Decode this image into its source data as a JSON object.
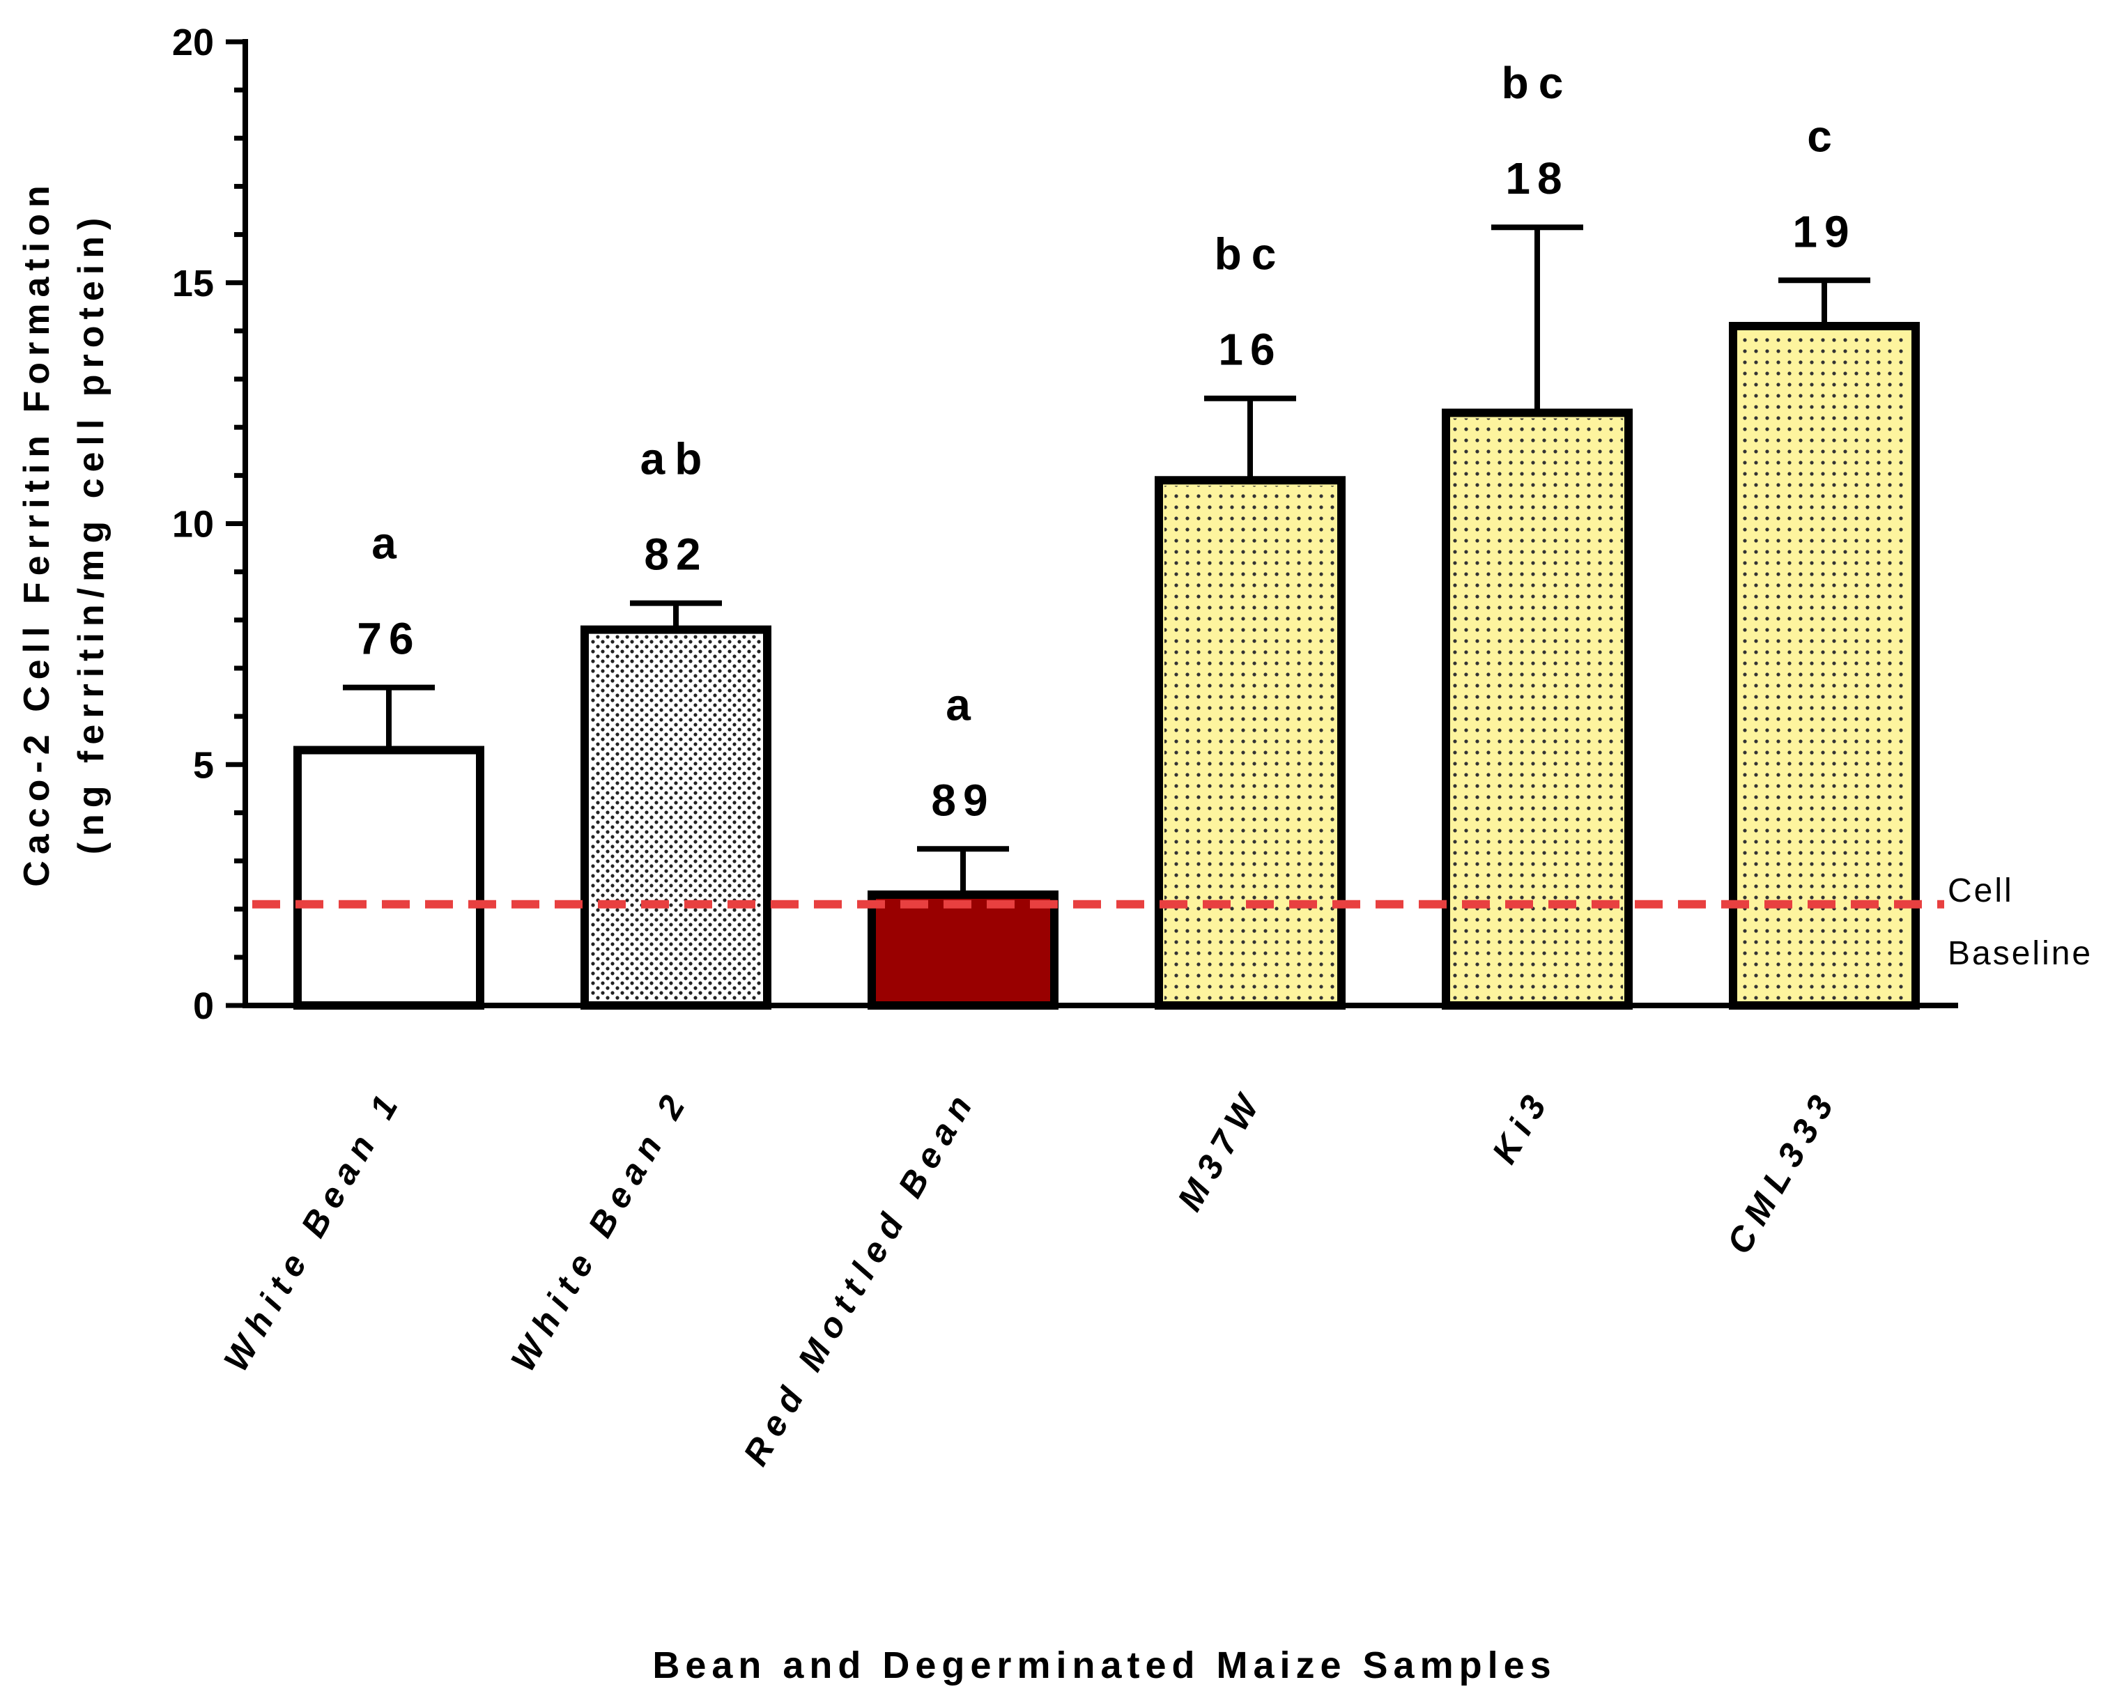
{
  "chart_data": {
    "type": "bar",
    "title": "",
    "xlabel": "Bean and Degerminated Maize Samples",
    "ylabel_lines": [
      "Caco-2 Cell Ferritin  Formation",
      "(ng ferritin/mg cell protein)"
    ],
    "ylim": [
      0,
      20
    ],
    "yticks": [
      0,
      5,
      10,
      15,
      20
    ],
    "categories": [
      "White Bean 1",
      "White Bean 2",
      "Red Mottled Bean",
      "M37W",
      "Ki3",
      "CML333"
    ],
    "values": [
      5.3,
      7.8,
      2.3,
      10.9,
      12.3,
      14.1
    ],
    "errors": [
      1.3,
      0.55,
      0.95,
      1.7,
      3.85,
      0.95
    ],
    "value_labels": [
      "76",
      "82",
      "89",
      "16",
      "18",
      "19"
    ],
    "significance": [
      "a",
      "ab",
      "a",
      "bc",
      "bc",
      "c"
    ],
    "fills": [
      "#ffffff",
      "#ffffff",
      "#990000",
      "#fdf49e",
      "#fdf49e",
      "#fdf49e"
    ],
    "patterns": [
      "none",
      "dots",
      "none",
      "dots",
      "dots",
      "dots"
    ],
    "reference_line": {
      "value": 2.1,
      "label_lines": [
        "Cell",
        "Baseline"
      ],
      "color": "#e84040"
    }
  }
}
